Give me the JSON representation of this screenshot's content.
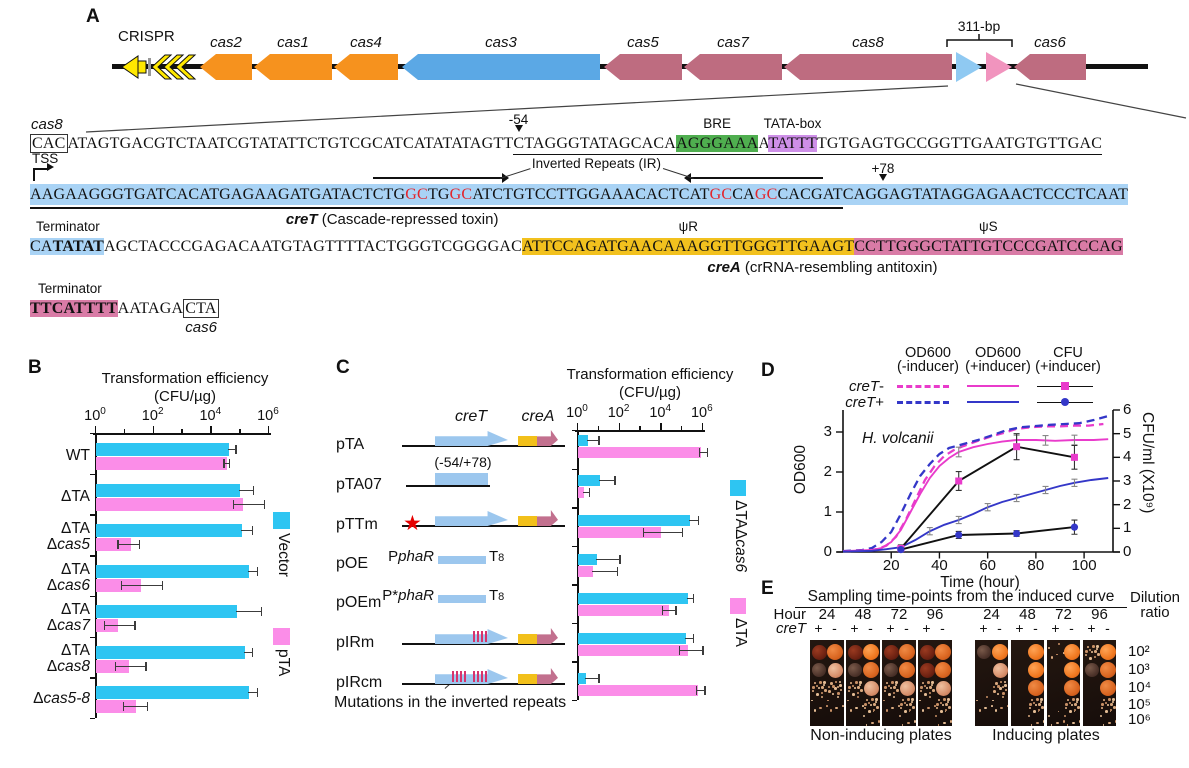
{
  "panelA": {
    "label": "A",
    "map": {
      "crispr_label": "CRISPR",
      "bracket_label": "311-bp",
      "genes": [
        {
          "label": "cas2",
          "type": "orange"
        },
        {
          "label": "cas1",
          "type": "orange"
        },
        {
          "label": "cas4",
          "type": "orange"
        },
        {
          "label": "cas3",
          "type": "blue"
        },
        {
          "label": "cas5",
          "type": "mauve"
        },
        {
          "label": "cas7",
          "type": "mauve"
        },
        {
          "label": "cas8",
          "type": "mauve"
        },
        {
          "label": "cas6",
          "type": "mauve"
        }
      ]
    },
    "seq": {
      "line1": {
        "gene": "cas8",
        "boxed": "CAC",
        "seg1": "ATAGTGACGTCTAATCGTATATTCTGTCGCATCATATATAGTT",
        "marker": "-54",
        "m54": "C",
        "seg2": "TAGGGTATAGCACA",
        "bre_label": "BRE",
        "bre": "AGGGAAA",
        "mid": "A",
        "tata_label": "TATA-box",
        "tata": "TATTT",
        "seg3": "TGTGAGTGCCGGTTGAATGTGTTGAC"
      },
      "line2": {
        "tss": "TSS",
        "ir_label": "Inverted Repeats (IR)",
        "plus78": "+78",
        "s0": "AAGAAGGGTGATCACATGAGAAGATGATACT",
        "ir1a": "CTG",
        "ir1b": "GC",
        "ir1c": "TG",
        "ir1d": "GC",
        "ir1e": "ATC",
        "mid": "TGTCCTTGGAAACACTC",
        "ir2a": "AT",
        "ir2b": "GC",
        "ir2c": "CA",
        "ir2d": "GC",
        "ir2e": "CACG",
        "t1": "ATCAG",
        "p78": "G",
        "t2": "AGTATAGGAGAACTCCCTCAAT",
        "name_it": "creT",
        "name_rest": " (Cascade-repressed toxin)"
      },
      "line3": {
        "term": "Terminator",
        "ta": "CA",
        "tb": "TATAT",
        "plain": "AGCTACCCGAGACAATGTAGTTTTACTGGGTCGGGGAC",
        "psiR_label": "ψR",
        "psiR": "ATTCCAGATGAACAAAGGTTGGGTTGAAGT",
        "psiS_label": "ψS",
        "psiS": "CCTTGGGCTATTGTCCCGATCCCAG",
        "name_it": "creA",
        "name_rest": " (crRNA-resembling antitoxin)"
      },
      "line4": {
        "term": "Terminator",
        "tbold": "TTCATTTT",
        "plain": "AATAGA",
        "boxed": "CTA",
        "gene": "cas6"
      }
    }
  },
  "panelB": {
    "label": "B"
  },
  "panelC": {
    "label": "C",
    "headers": {
      "creT": "creT",
      "creA": "creA"
    },
    "rows": [
      {
        "label": "pTA",
        "type": "full"
      },
      {
        "label": "pTA07",
        "type": "frag",
        "note": "(-54/+78)"
      },
      {
        "label": "pTTm",
        "type": "full",
        "star": "★"
      },
      {
        "label": "pOE",
        "type": "oe",
        "p": "P",
        "pit": "phaR",
        "t": "T",
        "tsub": "8"
      },
      {
        "label": "pOEm",
        "type": "oe",
        "p": "P*",
        "pit": "phaR",
        "t": "T",
        "tsub": "8"
      },
      {
        "label": "pIRm",
        "type": "full",
        "stripes": [
          38,
          42,
          46,
          50
        ]
      },
      {
        "label": "pIRcm",
        "type": "full",
        "stripes": [
          17,
          21,
          25,
          29,
          38,
          42,
          46,
          50
        ]
      }
    ],
    "footnote": "Mutations in the inverted repeats"
  },
  "panelD": {
    "label": "D",
    "annotation": "H. volcanii",
    "legend": {
      "col1a": "OD600",
      "col1b": "(-inducer)",
      "col2a": "OD600",
      "col2b": "(+inducer)",
      "col3a": "CFU",
      "col3b": "(+inducer)",
      "row1_it": "creT",
      "row1_suffix": "-",
      "row2_it": "creT",
      "row2_suffix": "+"
    }
  },
  "panelE": {
    "label": "E",
    "title": "Sampling time-points from the induced curve",
    "hour_label": "Hour",
    "cret_label": "creT",
    "plus": "+",
    "minus": "-",
    "dilution_label1": "Dilution",
    "dilution_label2": "ratio",
    "dilutions": [
      "10²",
      "10³",
      "10⁴",
      "10⁵",
      "10⁶"
    ],
    "groups": [
      {
        "name": "Non-inducing plates",
        "hours": [
          "24",
          "48",
          "72",
          "96"
        ],
        "panels": [
          {
            "plus": [
              "DR",
              "DM",
              "SP",
              "DT",
              "NO"
            ],
            "minus": [
              "F3",
              "FP",
              "SP",
              "DT",
              "NO"
            ]
          },
          {
            "plus": [
              "DR",
              "DM",
              "SP",
              "DT",
              "NO"
            ],
            "minus": [
              "F4",
              "F3",
              "FP",
              "SP",
              "DT"
            ]
          },
          {
            "plus": [
              "DR",
              "DM",
              "SP",
              "DT",
              "NO"
            ],
            "minus": [
              "F3",
              "F3",
              "FP",
              "SP",
              "DT"
            ]
          },
          {
            "plus": [
              "DR",
              "DR",
              "SP",
              "DT",
              "NO"
            ],
            "minus": [
              "F3",
              "F3",
              "FP",
              "SP",
              "DT"
            ]
          }
        ]
      },
      {
        "name": "Inducing plates",
        "hours": [
          "24",
          "48",
          "72",
          "96"
        ],
        "panels": [
          {
            "plus": [
              "DM",
              "NO",
              "NO",
              "DT",
              "NO"
            ],
            "minus": [
              "F4",
              "FP",
              "SP",
              "DT",
              "NO"
            ]
          },
          {
            "plus": [
              "NO",
              "NO",
              "NO",
              "NO",
              "NO"
            ],
            "minus": [
              "F4",
              "F4",
              "F3",
              "SP",
              "DT"
            ]
          },
          {
            "plus": [
              "DT",
              "NO",
              "NO",
              "NO",
              "DT"
            ],
            "minus": [
              "F4",
              "F4",
              "F3",
              "SP",
              "DT"
            ]
          },
          {
            "plus": [
              "SP",
              "DM",
              "NO",
              "NO",
              "NO"
            ],
            "minus": [
              "F4",
              "F3",
              "F3",
              "SP",
              "DT"
            ]
          }
        ]
      }
    ]
  },
  "chart_data": [
    {
      "id": "B",
      "type": "bar",
      "orientation": "horizontal",
      "scale": "log10",
      "title": "Transformation efficiency",
      "title_sub": "(CFU/µg)",
      "xlim_exponents": [
        0,
        6
      ],
      "tick_labeled": [
        0,
        2,
        4,
        6
      ],
      "categories": [
        [
          "WT"
        ],
        [
          "ΔTA"
        ],
        [
          "ΔTA",
          "Δcas5"
        ],
        [
          "ΔTA",
          "Δcas6"
        ],
        [
          "ΔTA",
          "Δcas7"
        ],
        [
          "ΔTA",
          "Δcas8"
        ],
        [
          "Δcas5-8"
        ]
      ],
      "series": [
        {
          "name": "Vector",
          "color": "#2EC5F2",
          "values": [
            40000,
            100000,
            120000,
            200000,
            80000,
            150000,
            200000
          ],
          "err_hi": [
            80000,
            320000,
            300000,
            450000,
            600000,
            300000,
            450000
          ],
          "err_lo": null
        },
        {
          "name": "pTA",
          "color": "#FB8DE8",
          "values": [
            35000,
            130000,
            16,
            35,
            6,
            14,
            24
          ],
          "err_hi": [
            48000,
            800000,
            35,
            220,
            25,
            60,
            70
          ],
          "err_lo": [
            28000,
            60000,
            6,
            8,
            2,
            5,
            9
          ]
        }
      ]
    },
    {
      "id": "C",
      "type": "bar",
      "orientation": "horizontal",
      "scale": "log10",
      "title": "Transformation efficiency",
      "title_sub": "(CFU/µg)",
      "xlim_exponents": [
        0,
        6
      ],
      "tick_labeled": [
        0,
        2,
        4,
        6
      ],
      "categories": [
        [
          "pTA"
        ],
        [
          "pTA07"
        ],
        [
          "pTTm"
        ],
        [
          "pOE"
        ],
        [
          "pOEm"
        ],
        [
          "pIRm"
        ],
        [
          "pIRcm"
        ]
      ],
      "series": [
        {
          "name": "ΔTAΔcas6",
          "color": "#2EC5F2",
          "values": [
            3,
            11,
            250000,
            8,
            200000,
            160000,
            2.5
          ],
          "err_hi": [
            12,
            70,
            700000,
            120,
            400000,
            400000,
            12
          ],
          "err_lo": null
        },
        {
          "name": "ΔTA",
          "color": "#FB8DE8",
          "values": [
            800000,
            2,
            10000,
            5,
            25000,
            200000,
            600000
          ],
          "err_hi": [
            2000000,
            4,
            120000,
            90,
            60000,
            1200000,
            1500000
          ],
          "err_lo": [
            700000,
            null,
            1500,
            null,
            12000,
            80000,
            500000
          ]
        }
      ]
    },
    {
      "id": "D",
      "type": "line",
      "xlabel": "Time (hour)",
      "ylabel_left": "OD600",
      "ylabel_right": "CFU/ml (X10⁹)",
      "annotation": "H. volcanii",
      "xlim": [
        0,
        112
      ],
      "ylim_left": [
        0,
        3.55
      ],
      "ylim_right": [
        0,
        6
      ],
      "x_ticks": [
        20,
        40,
        60,
        80,
        100
      ],
      "y_ticks_left": [
        0,
        1,
        2,
        3
      ],
      "y_ticks_right": [
        0,
        1,
        2,
        3,
        4,
        5,
        6
      ],
      "series": [
        {
          "name": "creT- OD600 (-inducer)",
          "color": "#E93BCB",
          "dash": true,
          "points": [
            [
              0,
              0.02
            ],
            [
              10,
              0.04
            ],
            [
              14,
              0.07
            ],
            [
              18,
              0.16
            ],
            [
              22,
              0.38
            ],
            [
              26,
              0.8
            ],
            [
              30,
              1.3
            ],
            [
              34,
              1.8
            ],
            [
              38,
              2.15
            ],
            [
              42,
              2.4
            ],
            [
              46,
              2.55
            ],
            [
              50,
              2.65
            ],
            [
              56,
              2.78
            ],
            [
              62,
              2.9
            ],
            [
              68,
              3.0
            ],
            [
              72,
              3.08
            ],
            [
              78,
              3.12
            ],
            [
              84,
              3.14
            ],
            [
              90,
              3.14
            ],
            [
              96,
              3.16
            ],
            [
              102,
              3.16
            ],
            [
              108,
              3.2
            ]
          ]
        },
        {
          "name": "creT+ OD600 (-inducer)",
          "color": "#3437C8",
          "dash": true,
          "points": [
            [
              0,
              0.02
            ],
            [
              8,
              0.05
            ],
            [
              12,
              0.1
            ],
            [
              16,
              0.25
            ],
            [
              20,
              0.5
            ],
            [
              24,
              0.95
            ],
            [
              28,
              1.45
            ],
            [
              32,
              1.9
            ],
            [
              36,
              2.2
            ],
            [
              40,
              2.45
            ],
            [
              44,
              2.6
            ],
            [
              50,
              2.7
            ],
            [
              56,
              2.8
            ],
            [
              62,
              2.92
            ],
            [
              68,
              3.05
            ],
            [
              74,
              3.12
            ],
            [
              80,
              3.15
            ],
            [
              86,
              3.18
            ],
            [
              92,
              3.2
            ],
            [
              98,
              3.22
            ],
            [
              104,
              3.3
            ],
            [
              110,
              3.4
            ]
          ]
        },
        {
          "name": "creT- OD600 (+inducer)",
          "color": "#E93BCB",
          "points": [
            [
              0,
              0.02
            ],
            [
              12,
              0.05
            ],
            [
              16,
              0.1
            ],
            [
              20,
              0.25
            ],
            [
              24,
              0.55
            ],
            [
              28,
              1.0
            ],
            [
              32,
              1.45
            ],
            [
              36,
              1.85
            ],
            [
              40,
              2.15
            ],
            [
              44,
              2.35
            ],
            [
              48,
              2.5
            ],
            [
              54,
              2.62
            ],
            [
              60,
              2.7
            ],
            [
              66,
              2.76
            ],
            [
              72,
              2.8
            ],
            [
              80,
              2.8
            ],
            [
              88,
              2.78
            ],
            [
              96,
              2.8
            ],
            [
              104,
              2.8
            ],
            [
              110,
              2.82
            ]
          ],
          "err_t": [
            48,
            72,
            84,
            96
          ],
          "err_dy": 0.12
        },
        {
          "name": "creT+ OD600 (+inducer)",
          "color": "#3437C8",
          "points": [
            [
              0,
              0.01
            ],
            [
              12,
              0.03
            ],
            [
              18,
              0.07
            ],
            [
              24,
              0.12
            ],
            [
              30,
              0.3
            ],
            [
              36,
              0.52
            ],
            [
              42,
              0.68
            ],
            [
              48,
              0.8
            ],
            [
              54,
              0.95
            ],
            [
              60,
              1.12
            ],
            [
              66,
              1.25
            ],
            [
              72,
              1.35
            ],
            [
              78,
              1.45
            ],
            [
              84,
              1.55
            ],
            [
              90,
              1.65
            ],
            [
              96,
              1.73
            ],
            [
              103,
              1.8
            ],
            [
              110,
              1.85
            ]
          ],
          "err_t": [
            36,
            48,
            60,
            72,
            84,
            96
          ],
          "err_dy": 0.09
        },
        {
          "name": "creT- CFU (+inducer)",
          "color": "#111",
          "axis": "right",
          "marker": "square",
          "marker_color": "#E93BCB",
          "points": [
            [
              24,
              0.15
            ],
            [
              48,
              3.0
            ],
            [
              72,
              4.45
            ],
            [
              96,
              4.0
            ]
          ],
          "err": [
            0.15,
            0.4,
            0.55,
            0.5
          ]
        },
        {
          "name": "creT+ CFU (+inducer)",
          "color": "#111",
          "axis": "right",
          "marker": "circle",
          "marker_color": "#3437C8",
          "points": [
            [
              24,
              0.1
            ],
            [
              48,
              0.72
            ],
            [
              72,
              0.78
            ],
            [
              96,
              1.05
            ]
          ],
          "err": [
            0.06,
            0.15,
            0.12,
            0.3
          ]
        }
      ]
    }
  ]
}
